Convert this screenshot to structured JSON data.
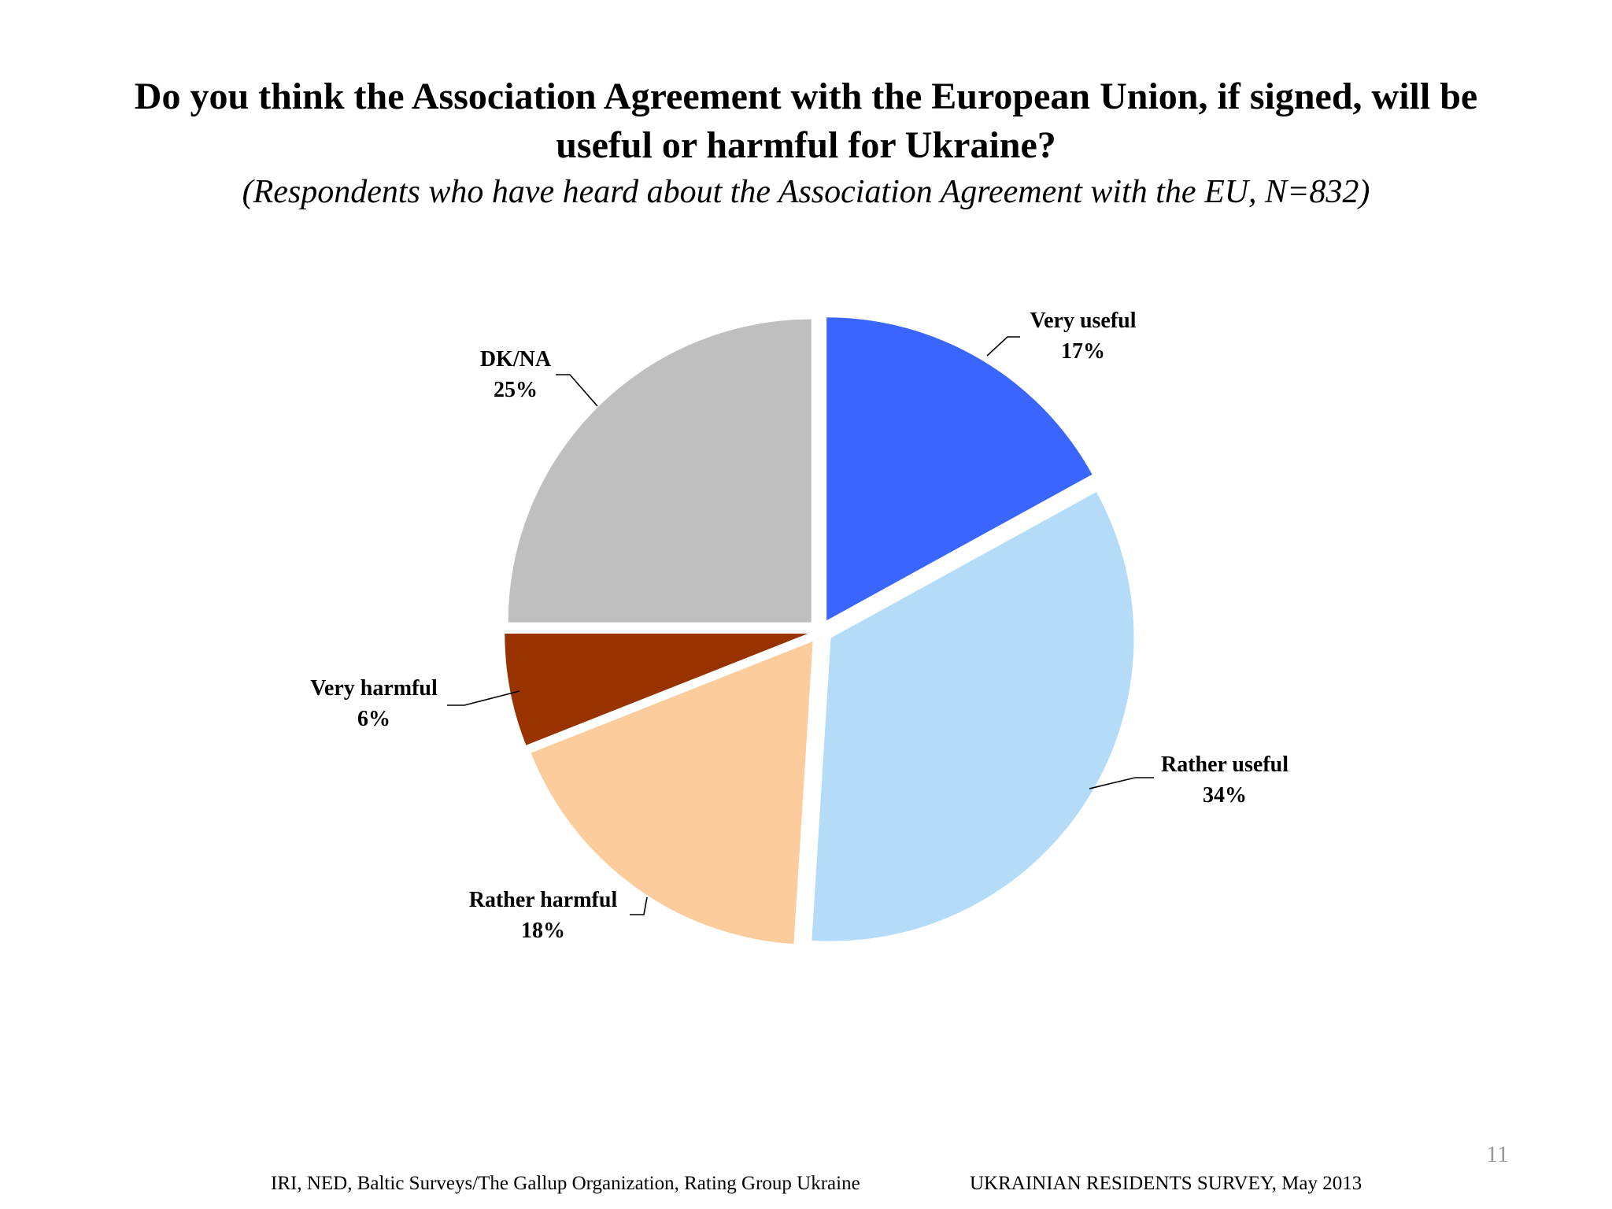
{
  "slide": {
    "title_line1": "Do you think the Association Agreement with the European Union, if signed, will be",
    "title_line2": "useful or harmful for Ukraine?",
    "subtitle": "(Respondents who have heard about the Association Agreement with the EU, N=832)",
    "page_number": "11",
    "footer_left": "IRI, NED,  Baltic Surveys/The Gallup Organization, Rating Group Ukraine",
    "footer_right": "UKRAINIAN RESIDENTS SURVEY, May  2013"
  },
  "chart_data": {
    "type": "pie",
    "title": "Do you think the Association Agreement with the European Union, if signed, will be useful or harmful for Ukraine?",
    "start": "top, clockwise",
    "legend": "none (data labels with leader lines)",
    "slices": [
      {
        "label": "Very useful",
        "value": 17,
        "value_label": "17%",
        "color": "#3a66ff"
      },
      {
        "label": "Rather useful",
        "value": 34,
        "value_label": "34%",
        "color": "#b4dcf9"
      },
      {
        "label": "Rather harmful",
        "value": 18,
        "value_label": "18%",
        "color": "#fccc9c"
      },
      {
        "label": "Very harmful",
        "value": 6,
        "value_label": "6%",
        "color": "#983300"
      },
      {
        "label": "DK/NA",
        "value": 25,
        "value_label": "25%",
        "color": "#bfbfbf"
      }
    ]
  }
}
